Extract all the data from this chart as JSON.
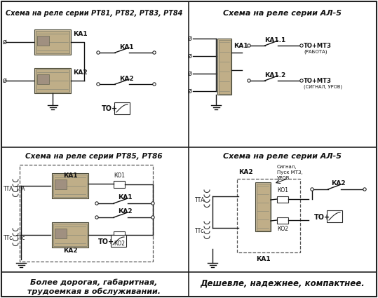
{
  "bg_color": "#ffffff",
  "border_color": "#222222",
  "text_color": "#111111",
  "title_top_left": "Схема на реле серии РТ81, РТ82, РТ83, РТ84",
  "title_top_right": "Схема на реле серии АЛ-5",
  "title_bot_left": "Схема на реле серии РТ85, РТ86",
  "title_bot_right": "Схема на реле серии АЛ-5",
  "footer_left": "Более дорогая, габаритная,\nтрудоемкая в обслуживании.",
  "footer_right": "Дешевле, надежнее, компактнее.",
  "fig_width": 5.39,
  "fig_height": 4.25,
  "dpi": 100
}
